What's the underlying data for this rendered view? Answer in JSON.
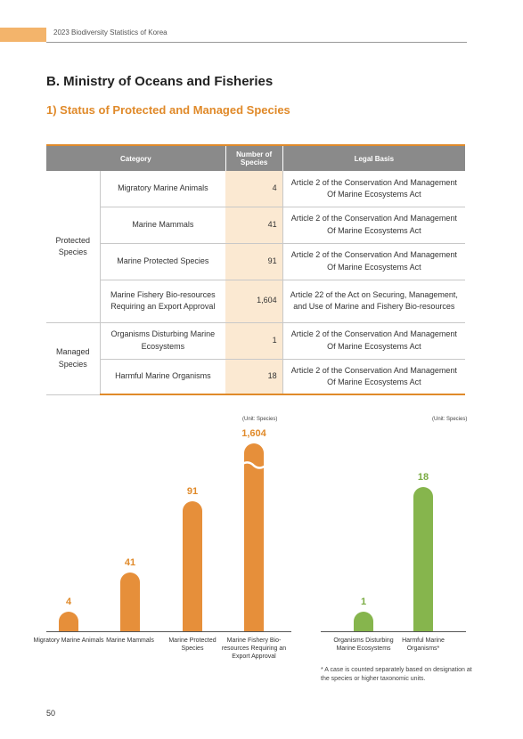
{
  "header": {
    "title": "2023 Biodiversity Statistics of Korea",
    "accent": "#f3b46b"
  },
  "section_title": "B. Ministry of Oceans and Fisheries",
  "sub_title": "1) Status of Protected and Managed Species",
  "table": {
    "headers": {
      "category": "Category",
      "number": "Number of Species",
      "legal": "Legal Basis"
    },
    "groups": [
      {
        "label": "Protected Species"
      },
      {
        "label": "Managed Species"
      }
    ],
    "rows": [
      {
        "category": "Migratory Marine Animals",
        "number": "4",
        "legal": "Article 2 of the Conservation And Management Of Marine Ecosystems Act"
      },
      {
        "category": "Marine Mammals",
        "number": "41",
        "legal": "Article 2 of the Conservation And Management Of Marine Ecosystems Act"
      },
      {
        "category": "Marine Protected Species",
        "number": "91",
        "legal": "Article 2 of the Conservation And Management Of Marine Ecosystems Act"
      },
      {
        "category": "Marine Fishery Bio-resources Requiring an Export Approval",
        "number": "1,604",
        "legal": "Article 22 of the Act on Securing, Management, and Use of Marine and Fishery Bio-resources"
      },
      {
        "category": "Organisms Disturbing Marine Ecosystems",
        "number": "1",
        "legal": "Article 2 of the Conservation And Management Of Marine Ecosystems Act"
      },
      {
        "category": "Harmful Marine Organisms",
        "number": "18",
        "legal": "Article 2 of the Conservation And Management Of Marine Ecosystems Act"
      }
    ]
  },
  "chart_data": [
    {
      "type": "bar",
      "unit": "(Unit: Species)",
      "categories": [
        "Migratory Marine Animals",
        "Marine Mammals",
        "Marine Protected Species",
        "Marine Fishery Bio-resources Requiring an Export Approval"
      ],
      "values": [
        4,
        41,
        91,
        1604
      ],
      "value_labels": [
        "4",
        "41",
        "91",
        "1,604"
      ],
      "axis_break": "last bar",
      "color": "#e68f3a"
    },
    {
      "type": "bar",
      "unit": "(Unit: Species)",
      "categories": [
        "Organisms Disturbing Marine Ecosystems",
        "Harmful Marine Organisms*"
      ],
      "values": [
        1,
        18
      ],
      "value_labels": [
        "1",
        "18"
      ],
      "color": "#86b54d"
    }
  ],
  "footnote": "* A case is counted separately based on designation at the species or higher taxonomic units.",
  "page_number": "50"
}
